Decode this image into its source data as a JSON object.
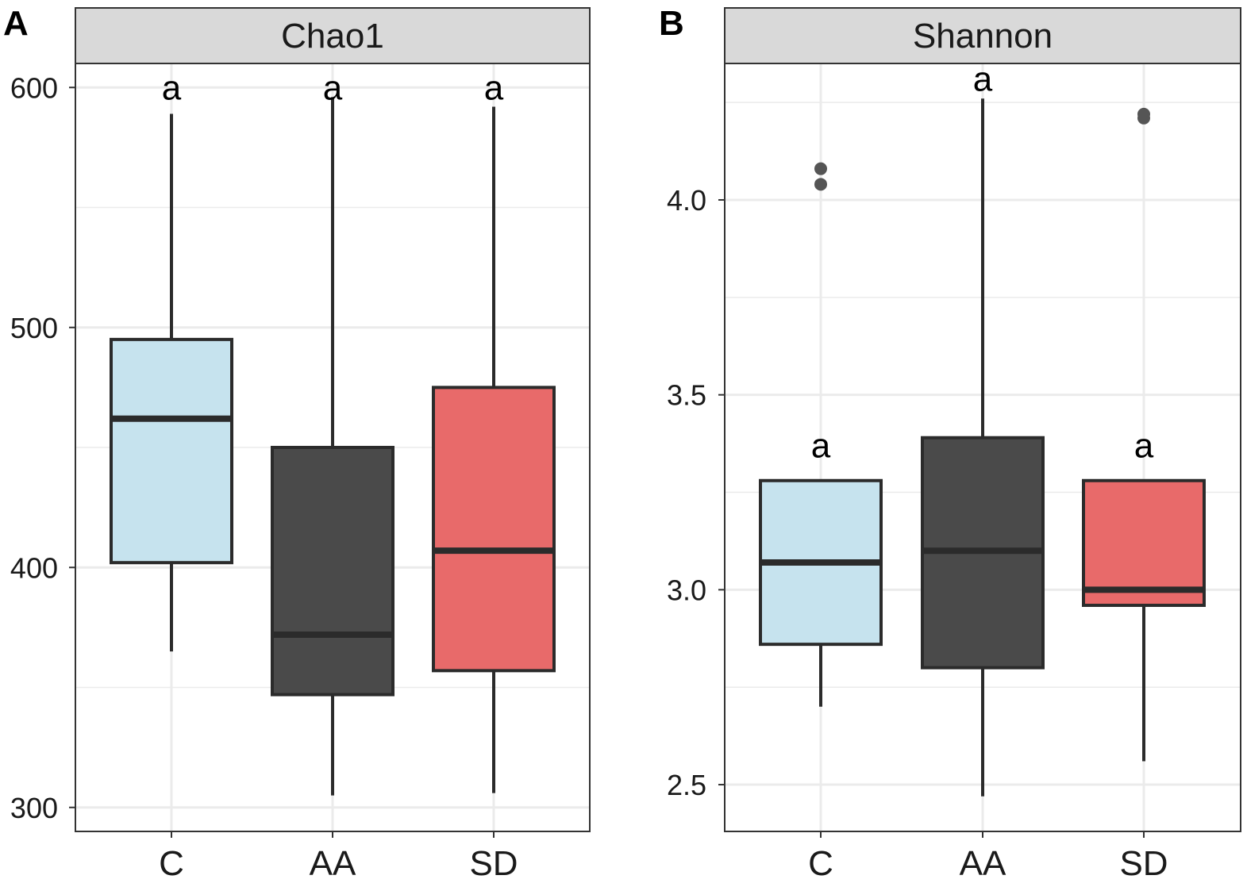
{
  "colors": {
    "C": "#c6e3ee",
    "AA": "#4a4a4a",
    "SD": "#e86a6a",
    "outline": "#2b2b2b",
    "grid": "#ebebeb",
    "strip": "#d9d9d9",
    "outlier": "#555555"
  },
  "chart_data": [
    {
      "type": "box",
      "panel_label": "A",
      "title": "Chao1",
      "categories": [
        "C",
        "AA",
        "SD"
      ],
      "ylim": [
        290,
        610
      ],
      "major_ticks": [
        300,
        400,
        500,
        600
      ],
      "tick_labels": [
        "300",
        "400",
        "500",
        "600"
      ],
      "minor_ticks": [
        350,
        450,
        550
      ],
      "boxes": [
        {
          "group": "C",
          "whisker_low": 365,
          "q1": 402,
          "median": 462,
          "q3": 495,
          "whisker_high": 589,
          "outliers": [],
          "sig": "a",
          "sig_value": 600
        },
        {
          "group": "AA",
          "whisker_low": 305,
          "q1": 347,
          "median": 372,
          "q3": 450,
          "whisker_high": 596,
          "outliers": [],
          "sig": "a",
          "sig_value": 600
        },
        {
          "group": "SD",
          "whisker_low": 306,
          "q1": 357,
          "median": 407,
          "q3": 475,
          "whisker_high": 592,
          "outliers": [],
          "sig": "a",
          "sig_value": 600
        }
      ]
    },
    {
      "type": "box",
      "panel_label": "B",
      "title": "Shannon",
      "categories": [
        "C",
        "AA",
        "SD"
      ],
      "ylim": [
        2.38,
        4.35
      ],
      "major_ticks": [
        2.5,
        3.0,
        3.5,
        4.0
      ],
      "tick_labels": [
        "2.5",
        "3.0",
        "3.5",
        "4.0"
      ],
      "minor_ticks": [
        2.75,
        3.25,
        3.75,
        4.25
      ],
      "boxes": [
        {
          "group": "C",
          "whisker_low": 2.7,
          "q1": 2.86,
          "median": 3.07,
          "q3": 3.28,
          "whisker_high": 3.28,
          "outliers": [
            4.04,
            4.08
          ],
          "sig": "a",
          "sig_value": 3.37
        },
        {
          "group": "AA",
          "whisker_low": 2.47,
          "q1": 2.8,
          "median": 3.1,
          "q3": 3.39,
          "whisker_high": 4.26,
          "outliers": [],
          "sig": "a",
          "sig_value": 4.31
        },
        {
          "group": "SD",
          "whisker_low": 2.56,
          "q1": 2.96,
          "median": 3.0,
          "q3": 3.28,
          "whisker_high": 3.28,
          "outliers": [
            4.21,
            4.22
          ],
          "sig": "a",
          "sig_value": 3.37
        }
      ]
    }
  ]
}
